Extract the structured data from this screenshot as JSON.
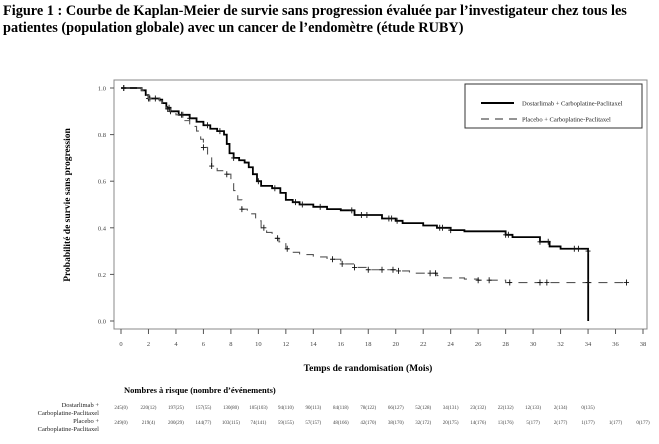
{
  "title": "Figure 1 : Courbe de Kaplan-Meier de survie sans progression évaluée par l’investigateur chez tous les patientes (population globale) avec un cancer de l’endomètre (étude RUBY)",
  "chart_data": {
    "type": "line",
    "subtype": "kaplan-meier",
    "xlabel": "Temps de randomisation (Mois)",
    "ylabel": "Probabilité de survie sans progression",
    "xlim": [
      0,
      38
    ],
    "ylim": [
      0,
      1
    ],
    "xticks": [
      "0",
      "2",
      "4",
      "6",
      "8",
      "10",
      "12",
      "14",
      "16",
      "18",
      "20",
      "22",
      "24",
      "26",
      "28",
      "30",
      "32",
      "34",
      "36",
      "38"
    ],
    "yticks": [
      "0.0",
      "0.2",
      "0.4",
      "0.6",
      "0.8",
      "1.0"
    ],
    "legend_position": "top-right",
    "series": [
      {
        "name": "Dostarlimab + Carboplatine-Paclitaxel",
        "style": "solid",
        "color": "#000000",
        "steps": [
          [
            0,
            1.0
          ],
          [
            1.5,
            0.99
          ],
          [
            1.8,
            0.97
          ],
          [
            2.0,
            0.955
          ],
          [
            2.8,
            0.95
          ],
          [
            3.0,
            0.935
          ],
          [
            3.3,
            0.915
          ],
          [
            3.6,
            0.9
          ],
          [
            4.2,
            0.885
          ],
          [
            5.0,
            0.87
          ],
          [
            5.5,
            0.855
          ],
          [
            6.0,
            0.84
          ],
          [
            6.5,
            0.825
          ],
          [
            7.0,
            0.815
          ],
          [
            7.5,
            0.8
          ],
          [
            7.7,
            0.76
          ],
          [
            7.9,
            0.72
          ],
          [
            8.2,
            0.7
          ],
          [
            8.6,
            0.69
          ],
          [
            9.0,
            0.68
          ],
          [
            9.3,
            0.66
          ],
          [
            9.6,
            0.63
          ],
          [
            9.9,
            0.6
          ],
          [
            10.2,
            0.58
          ],
          [
            11.0,
            0.57
          ],
          [
            11.6,
            0.55
          ],
          [
            12.0,
            0.52
          ],
          [
            12.5,
            0.51
          ],
          [
            13.0,
            0.5
          ],
          [
            14.0,
            0.49
          ],
          [
            15.0,
            0.48
          ],
          [
            16.0,
            0.475
          ],
          [
            17.0,
            0.455
          ],
          [
            19.0,
            0.44
          ],
          [
            20.0,
            0.43
          ],
          [
            20.5,
            0.42
          ],
          [
            22.0,
            0.41
          ],
          [
            23.0,
            0.4
          ],
          [
            24.0,
            0.39
          ],
          [
            25.0,
            0.385
          ],
          [
            28.0,
            0.37
          ],
          [
            28.5,
            0.36
          ],
          [
            30.5,
            0.34
          ],
          [
            31.2,
            0.32
          ],
          [
            32.0,
            0.31
          ],
          [
            34.0,
            0.3
          ],
          [
            34.01,
            0.0
          ]
        ],
        "censor_x": [
          0.2,
          2.0,
          2.1,
          3.5,
          3.6,
          4.5,
          5.0,
          6.3,
          7.2,
          8.2,
          10.0,
          11.2,
          12.7,
          13.2,
          14.5,
          16.8,
          17.5,
          17.9,
          19.5,
          19.7,
          20.1,
          23.2,
          23.4,
          24.0,
          28.0,
          28.2,
          30.5,
          31.1,
          33.0,
          33.3,
          34.0
        ]
      },
      {
        "name": "Placebo + Carboplatine-Paclitaxel",
        "style": "dashed",
        "color": "#555555",
        "steps": [
          [
            0,
            1.0
          ],
          [
            1.5,
            0.99
          ],
          [
            1.8,
            0.97
          ],
          [
            2.0,
            0.955
          ],
          [
            2.8,
            0.945
          ],
          [
            3.0,
            0.93
          ],
          [
            3.3,
            0.91
          ],
          [
            3.6,
            0.895
          ],
          [
            4.0,
            0.885
          ],
          [
            4.5,
            0.86
          ],
          [
            5.0,
            0.835
          ],
          [
            5.5,
            0.815
          ],
          [
            5.8,
            0.78
          ],
          [
            6.0,
            0.745
          ],
          [
            6.3,
            0.7
          ],
          [
            6.6,
            0.665
          ],
          [
            7.0,
            0.645
          ],
          [
            7.5,
            0.63
          ],
          [
            8.0,
            0.59
          ],
          [
            8.2,
            0.56
          ],
          [
            8.5,
            0.52
          ],
          [
            8.8,
            0.48
          ],
          [
            9.2,
            0.46
          ],
          [
            9.8,
            0.43
          ],
          [
            10.2,
            0.4
          ],
          [
            10.6,
            0.38
          ],
          [
            11.0,
            0.355
          ],
          [
            11.5,
            0.34
          ],
          [
            12.0,
            0.31
          ],
          [
            12.5,
            0.295
          ],
          [
            13.0,
            0.285
          ],
          [
            14.0,
            0.275
          ],
          [
            15.0,
            0.265
          ],
          [
            16.0,
            0.245
          ],
          [
            17.0,
            0.23
          ],
          [
            18.0,
            0.22
          ],
          [
            20.0,
            0.215
          ],
          [
            21.0,
            0.205
          ],
          [
            23.0,
            0.195
          ],
          [
            23.5,
            0.185
          ],
          [
            25.0,
            0.18
          ],
          [
            26.0,
            0.175
          ],
          [
            28.0,
            0.165
          ],
          [
            37.0,
            0.165
          ]
        ],
        "censor_x": [
          0.2,
          2.5,
          3.4,
          4.4,
          6.0,
          6.6,
          7.7,
          8.8,
          10.4,
          11.4,
          12.1,
          15.4,
          16.1,
          17.0,
          18.0,
          19.0,
          19.8,
          20.2,
          22.5,
          22.9,
          26.0,
          26.8,
          28.3,
          30.5,
          31.0,
          34.0,
          36.8
        ]
      }
    ],
    "risk_table": {
      "title": "Nombres à risque (nombre d’événements)",
      "rows": [
        {
          "label_line1": "Dostarlimab +",
          "label_line2": "Carboplatine-Paclitaxel",
          "values": [
            "245(0)",
            "220(12)",
            "197(25)",
            "157(55)",
            "130(80)",
            "105(103)",
            "94(110)",
            "90(113)",
            "84(118)",
            "78(122)",
            "66(127)",
            "52(128)",
            "34(131)",
            "23(132)",
            "22(132)",
            "12(133)",
            "2(134)",
            "0(135)"
          ]
        },
        {
          "label_line1": "Placebo +",
          "label_line2": "Carboplatine-Paclitaxel",
          "values": [
            "249(0)",
            "219(4)",
            "200(29)",
            "144(77)",
            "103(115)",
            "74(141)",
            "59(155)",
            "57(157)",
            "48(166)",
            "42(170)",
            "38(170)",
            "32(172)",
            "20(175)",
            "14(176)",
            "13(176)",
            "5(177)",
            "2(177)",
            "1(177)",
            "1(177)",
            "0(177)"
          ]
        }
      ]
    }
  }
}
